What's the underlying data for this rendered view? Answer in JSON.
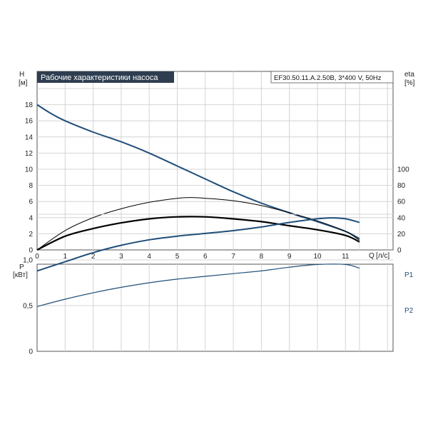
{
  "chart_data": [
    {
      "type": "line",
      "title": "Рабочие характеристики насоса",
      "subtitle": "EF30.50.11.A.2.50B, 3*400 V, 50Hz",
      "ylabel": "H",
      "yunit": "[м]",
      "y2label": "eta",
      "y2unit": "[%]",
      "xlabel": "Q",
      "xunit": "[л/с]",
      "xlim": [
        0,
        12.5
      ],
      "ylim": [
        0,
        20
      ],
      "y2lim": [
        0,
        100
      ],
      "xticks": [
        "0",
        "1",
        "2",
        "3",
        "4",
        "5",
        "6",
        "7",
        "8",
        "9",
        "10",
        "11"
      ],
      "yticks": [
        "0",
        "2",
        "4",
        "6",
        "8",
        "10",
        "12",
        "14",
        "16",
        "18"
      ],
      "y2ticks": [
        "0",
        "20",
        "40",
        "60",
        "80",
        "100"
      ],
      "grid": true,
      "colors": {
        "head": "#1f4e79",
        "efficiency": "#000000",
        "header_bg": "#2e3e50"
      },
      "series": [
        {
          "key": "head",
          "axis": "left",
          "x": [
            0,
            0.5,
            1,
            2,
            3,
            4,
            5,
            6,
            7,
            8,
            9,
            10,
            11,
            11.5
          ],
          "y": [
            18,
            16.9,
            16,
            14.6,
            13.4,
            12,
            10.4,
            8.8,
            7.2,
            5.8,
            4.6,
            3.5,
            2.3,
            1.4
          ]
        },
        {
          "key": "eta_a",
          "axis": "right",
          "x": [
            0,
            1,
            2,
            3,
            4,
            5,
            5.5,
            6,
            7,
            8,
            9,
            10,
            11,
            11.5
          ],
          "y": [
            0,
            24,
            40,
            51,
            59,
            64,
            65,
            64,
            61,
            55,
            46,
            36,
            23,
            12
          ]
        },
        {
          "key": "eta_b",
          "axis": "left",
          "x": [
            0,
            1,
            2,
            3,
            4,
            5,
            6,
            7,
            8,
            9,
            10,
            11,
            11.5
          ],
          "y": [
            0,
            1.7,
            2.65,
            3.35,
            3.85,
            4.1,
            4.1,
            3.85,
            3.5,
            3.0,
            2.5,
            1.8,
            1.0
          ]
        }
      ]
    },
    {
      "type": "line",
      "ylabel": "P",
      "yunit": "[кВт]",
      "xlim": [
        0,
        12.5
      ],
      "ylim": [
        0,
        1.8
      ],
      "yticks": [
        "0",
        "0,5",
        "1,0"
      ],
      "grid": true,
      "series": [
        {
          "name": "P1",
          "x": [
            0,
            1,
            2,
            3,
            4,
            5,
            6,
            7,
            8,
            9,
            10,
            10.5,
            11,
            11.5
          ],
          "y": [
            0.88,
            0.98,
            1.08,
            1.16,
            1.22,
            1.26,
            1.29,
            1.32,
            1.36,
            1.41,
            1.45,
            1.46,
            1.45,
            1.41
          ]
        },
        {
          "name": "P2",
          "x": [
            0,
            1,
            2,
            3,
            4,
            5,
            6,
            7,
            8,
            9,
            10,
            11,
            11.5
          ],
          "y": [
            0.49,
            0.57,
            0.64,
            0.7,
            0.75,
            0.79,
            0.82,
            0.85,
            0.88,
            0.92,
            0.95,
            0.95,
            0.91
          ]
        }
      ]
    }
  ]
}
